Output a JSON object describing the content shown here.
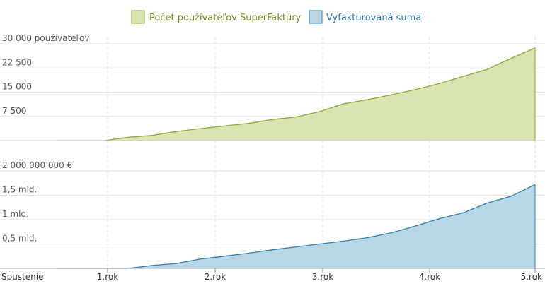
{
  "chart_data": {
    "type": "area",
    "legend": {
      "placement": "top-center",
      "entries": [
        {
          "label": "Počet používateľov SuperFaktúry",
          "fill": "#d8e5b3",
          "stroke": "#8ba83a",
          "text_color": "#6d8f1e"
        },
        {
          "label": "Vyfakturovaná suma",
          "fill": "#b9d6e6",
          "stroke": "#2f7fae",
          "text_color": "#2a75a8"
        }
      ]
    },
    "x_axis": {
      "range": [
        0,
        5
      ],
      "ticks": [
        {
          "value": 0,
          "label": "Spustenie"
        },
        {
          "value": 1,
          "label": "1.rok"
        },
        {
          "value": 2,
          "label": "2.rok"
        },
        {
          "value": 3,
          "label": "3.rok"
        },
        {
          "value": 4,
          "label": "4.rok"
        },
        {
          "value": 5,
          "label": "5.rok"
        }
      ],
      "grid": "dashed-vertical"
    },
    "panels": [
      {
        "name": "Počet používateľov SuperFaktúry",
        "ylim": [
          0,
          30000
        ],
        "ticks": [
          {
            "value": 30000,
            "label": "30 000 používateľov"
          },
          {
            "value": 22500,
            "label": "22 500"
          },
          {
            "value": 15000,
            "label": "15 000"
          },
          {
            "value": 7500,
            "label": "7 500"
          }
        ],
        "fill": "#d8e5b3",
        "stroke": "#8ba83a",
        "x": [
          0,
          0.5,
          0.75,
          1.0,
          1.25,
          1.5,
          1.75,
          2.0,
          2.25,
          2.5,
          2.75,
          3.0,
          3.25,
          3.5,
          3.75,
          4.0,
          4.25,
          4.5,
          4.75,
          5.0
        ],
        "y": [
          0,
          0,
          1000,
          1600,
          2800,
          3700,
          4500,
          5300,
          6500,
          7300,
          9000,
          11400,
          12700,
          14200,
          15800,
          17700,
          19900,
          22100,
          25500,
          28700
        ]
      },
      {
        "name": "Vyfakturovaná suma",
        "ylim": [
          0,
          2000000000
        ],
        "ticks": [
          {
            "value": 2000000000,
            "label": "2 000 000 000 €"
          },
          {
            "value": 1500000000,
            "label": "1,5 mld."
          },
          {
            "value": 1000000000,
            "label": "1 mld."
          },
          {
            "value": 500000000,
            "label": "0,5 mld."
          }
        ],
        "fill": "#b9d6e6",
        "stroke": "#2f7fae",
        "x": [
          0,
          0.75,
          1.0,
          1.25,
          1.5,
          1.75,
          2.0,
          2.25,
          2.5,
          2.75,
          3.0,
          3.25,
          3.5,
          3.75,
          4.0,
          4.25,
          4.5,
          4.75,
          5.0
        ],
        "y": [
          0,
          0,
          60000000,
          100000000,
          190000000,
          250000000,
          310000000,
          380000000,
          440000000,
          500000000,
          560000000,
          630000000,
          730000000,
          870000000,
          1020000000,
          1140000000,
          1340000000,
          1480000000,
          1720000000
        ]
      }
    ]
  }
}
